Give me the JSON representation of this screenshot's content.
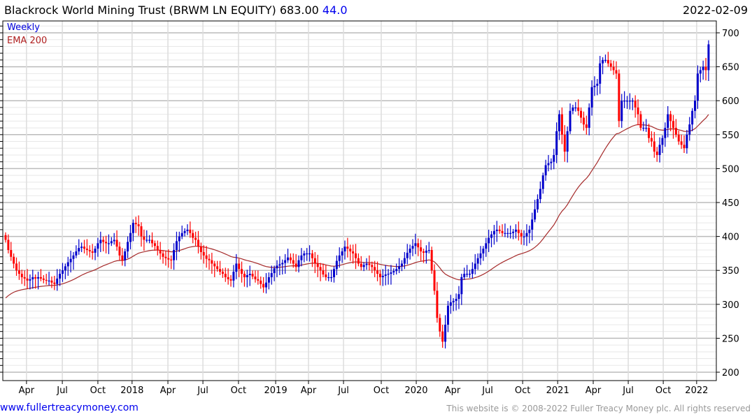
{
  "header": {
    "name": "Blackrock World Mining Trust (BRWM LN EQUITY)",
    "last": "683.00",
    "change": "44.0",
    "date": "2022-02-09"
  },
  "footer": {
    "link": "www.fullertreacymoney.com",
    "copyright": "This website is © 2008-2022 Fuller Treacy Money plc. All rights reserved"
  },
  "chart_data": {
    "type": "candlestick",
    "title": "Blackrock World Mining Trust (BRWM LN EQUITY)",
    "legend": [
      "Weekly",
      "EMA 200"
    ],
    "legend_placement": "top-left",
    "ylim": [
      200,
      700
    ],
    "y_ticks": [
      200,
      250,
      300,
      350,
      400,
      450,
      500,
      550,
      600,
      650,
      700
    ],
    "x_ticks": [
      {
        "label": "Apr",
        "week": 7.7
      },
      {
        "label": "Jul",
        "week": 20.9
      },
      {
        "label": "Oct",
        "week": 34
      },
      {
        "label": "2018",
        "week": 46.6
      },
      {
        "label": "Apr",
        "week": 59.8
      },
      {
        "label": "Jul",
        "week": 72.7
      },
      {
        "label": "Oct",
        "week": 85.8
      },
      {
        "label": "2019",
        "week": 99.5
      },
      {
        "label": "Apr",
        "week": 111.6
      },
      {
        "label": "Jul",
        "week": 124.5
      },
      {
        "label": "Oct",
        "week": 138.4
      },
      {
        "label": "2020",
        "week": 151.3
      },
      {
        "label": "Apr",
        "week": 164.7
      },
      {
        "label": "Jul",
        "week": 177.6
      },
      {
        "label": "Oct",
        "week": 190.5
      },
      {
        "label": "2021",
        "week": 203.4
      },
      {
        "label": "Apr",
        "week": 216.5
      },
      {
        "label": "Jul",
        "week": 229.4
      },
      {
        "label": "Oct",
        "week": 242.3
      },
      {
        "label": "2022",
        "week": 254.6
      }
    ],
    "first_open": 402,
    "ema_seed": 305,
    "ema_period_weeks": 40,
    "weekly_close": [
      395,
      380,
      370,
      360,
      350,
      345,
      340,
      338,
      335,
      337,
      340,
      338,
      340,
      338,
      336,
      335,
      335,
      332,
      330,
      338,
      345,
      350,
      356,
      362,
      367,
      372,
      378,
      383,
      385,
      382,
      380,
      378,
      376,
      382,
      390,
      395,
      392,
      390,
      390,
      393,
      395,
      385,
      372,
      365,
      378,
      392,
      405,
      420,
      418,
      415,
      400,
      395,
      395,
      395,
      390,
      386,
      380,
      375,
      370,
      368,
      366,
      365,
      380,
      393,
      400,
      405,
      408,
      410,
      405,
      398,
      395,
      385,
      377,
      372,
      367,
      365,
      360,
      356,
      352,
      348,
      345,
      340,
      337,
      335,
      348,
      360,
      352,
      345,
      340,
      343,
      345,
      341,
      337,
      335,
      330,
      325,
      332,
      340,
      346,
      353,
      357,
      359,
      361,
      365,
      369,
      365,
      360,
      355,
      365,
      372,
      375,
      375,
      375,
      368,
      360,
      355,
      350,
      344,
      340,
      340,
      340,
      352,
      364,
      372,
      378,
      385,
      382,
      378,
      375,
      368,
      360,
      355,
      358,
      360,
      358,
      355,
      350,
      345,
      340,
      342,
      344,
      345,
      347,
      349,
      352,
      356,
      360,
      368,
      376,
      382,
      386,
      390,
      384,
      378,
      376,
      379,
      380,
      350,
      320,
      280,
      260,
      245,
      270,
      298,
      303,
      305,
      308,
      315,
      340,
      345,
      345,
      345,
      352,
      360,
      368,
      375,
      382,
      390,
      398,
      403,
      408,
      410,
      408,
      405,
      405,
      405,
      405,
      407,
      410,
      405,
      400,
      400,
      405,
      410,
      425,
      440,
      455,
      470,
      490,
      505,
      508,
      510,
      520,
      555,
      580,
      550,
      525,
      555,
      585,
      590,
      590,
      585,
      575,
      565,
      560,
      590,
      620,
      622,
      625,
      655,
      660,
      660,
      655,
      650,
      645,
      640,
      570,
      600,
      600,
      600,
      600,
      600,
      590,
      580,
      560,
      560,
      560,
      545,
      540,
      525,
      520,
      535,
      545,
      560,
      580,
      570,
      560,
      550,
      540,
      535,
      530,
      550,
      565,
      585,
      600,
      640,
      645,
      650,
      645,
      683
    ]
  }
}
